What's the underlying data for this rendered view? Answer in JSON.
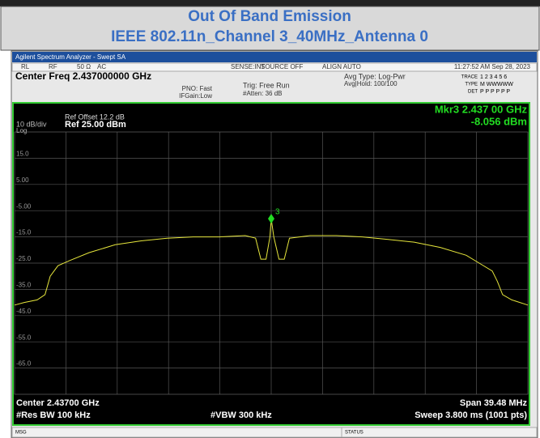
{
  "header": {
    "title": "Out Of Band Emission",
    "subtitle": "IEEE 802.11n_Channel 3_40MHz_Antenna 0"
  },
  "ui": {
    "window_title": "Agilent Spectrum Analyzer - Swept SA",
    "status_fields": [
      "RL",
      "RF",
      "50 Ω",
      "AC",
      "SENSE:INT",
      "SOURCE OFF",
      "ALIGN AUTO"
    ],
    "timestamp": "11:27:52 AM Sep 28, 2023",
    "center_freq": "Center Freq 2.437000000 GHz",
    "pno": "PNO: Fast",
    "ifgain": "IFGain:Low",
    "trig": "Trig: Free Run",
    "atten": "#Atten: 36 dB",
    "avg_type": "Avg Type: Log-Pwr",
    "avg_hold": "Avg|Hold: 100/100",
    "trace_label": "TRACE",
    "trace_nums": "1 2 3 4 5 6",
    "type_label": "TYPE",
    "type_vals": "M WWWWW",
    "det_label": "DET",
    "det_vals": "P P P P P P",
    "ref_offset": "Ref Offset 12.2 dB",
    "scale": "10 dB/div",
    "ref_level": "Ref 25.00 dBm",
    "log": "Log",
    "center": "Center 2.43700 GHz",
    "res_bw": "#Res BW 100 kHz",
    "vbw": "#VBW 300 kHz",
    "span": "Span 39.48 MHz",
    "sweep": "Sweep  3.800 ms (1001 pts)",
    "msg": "MSG",
    "status": "STATUS"
  },
  "chart_data": {
    "type": "line",
    "color": "#e6e63c",
    "x": [
      2.41726,
      2.418,
      2.419,
      2.4196,
      2.42,
      2.4206,
      2.4215,
      2.423,
      2.425,
      2.427,
      2.429,
      2.431,
      2.433,
      2.435,
      2.4358,
      2.4362,
      2.4366,
      2.4369,
      2.437,
      2.4372,
      2.4376,
      2.438,
      2.4384,
      2.44,
      2.442,
      2.444,
      2.446,
      2.448,
      2.45,
      2.452,
      2.453,
      2.454,
      2.4544,
      2.4548,
      2.4555,
      2.45674
    ],
    "values": [
      -41,
      -40,
      -39,
      -37,
      -30,
      -26,
      -24,
      -21,
      -18,
      -16.5,
      -15.5,
      -15,
      -15,
      -14.5,
      -15.5,
      -23.5,
      -23.5,
      -15,
      -8.056,
      -15,
      -23.5,
      -23.5,
      -15.5,
      -14.5,
      -14.5,
      -15,
      -16,
      -17,
      -19,
      -22,
      -25,
      -28,
      -32,
      -37,
      -39,
      -41
    ],
    "xlim": [
      2.41726,
      2.45674
    ],
    "ylim": [
      -75,
      25
    ],
    "yticks": [
      {
        "value": 15,
        "label": "15.0"
      },
      {
        "value": 5,
        "label": "5.00"
      },
      {
        "value": -5,
        "label": "-5.00"
      },
      {
        "value": -15,
        "label": "-15.0"
      },
      {
        "value": -25,
        "label": "-25.0"
      },
      {
        "value": -35,
        "label": "-35.0"
      },
      {
        "value": -45,
        "label": "-45.0"
      },
      {
        "value": -55,
        "label": "-55.0"
      },
      {
        "value": -65,
        "label": "-65.0"
      }
    ],
    "grid": true,
    "marker": {
      "name": "3",
      "x": 2.437,
      "value": -8.056,
      "readout_x": "Mkr3 2.437 00 GHz",
      "readout_value": "-8.056 dBm",
      "color": "#22dd22"
    }
  }
}
